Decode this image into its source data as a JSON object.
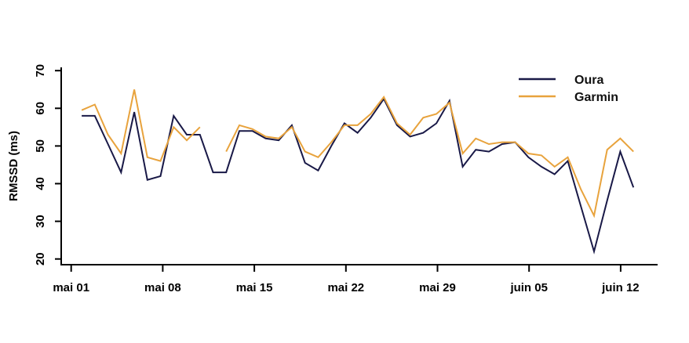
{
  "chart_data": {
    "type": "line",
    "title": "",
    "xlabel": "",
    "ylabel": "RMSSD (ms)",
    "ylim": [
      20,
      70
    ],
    "grid": false,
    "legend_position": "top-right",
    "yticks": [
      "20",
      "30",
      "40",
      "50",
      "60",
      "70"
    ],
    "xticks": [
      "mai 01",
      "mai 08",
      "mai 15",
      "mai 22",
      "mai 29",
      "juin 05",
      "juin 12"
    ],
    "x_dates": [
      "mai 02",
      "mai 03",
      "mai 04",
      "mai 05",
      "mai 06",
      "mai 07",
      "mai 08",
      "mai 09",
      "mai 10",
      "mai 11",
      "mai 12",
      "mai 13",
      "mai 14",
      "mai 15",
      "mai 16",
      "mai 17",
      "mai 18",
      "mai 19",
      "mai 20",
      "mai 21",
      "mai 22",
      "mai 23",
      "mai 24",
      "mai 25",
      "mai 26",
      "mai 27",
      "mai 28",
      "mai 29",
      "mai 30",
      "mai 31",
      "juin 01",
      "juin 02",
      "juin 03",
      "juin 04",
      "juin 05",
      "juin 06",
      "juin 07",
      "juin 08",
      "juin 09",
      "juin 10",
      "juin 11",
      "juin 12",
      "juin 13"
    ],
    "series": [
      {
        "name": "Oura",
        "color": "#191947",
        "values": [
          58,
          58,
          50.5,
          43,
          59,
          41,
          42,
          58,
          53,
          53,
          43,
          43,
          54,
          54,
          52,
          51.5,
          55.5,
          45.5,
          43.5,
          50,
          56,
          53.5,
          57.5,
          62.5,
          55.5,
          52.5,
          53.5,
          56,
          62,
          44.5,
          49,
          48.5,
          50.5,
          51,
          47,
          44.5,
          42.5,
          46,
          34,
          22,
          35.5,
          48.5,
          39
        ]
      },
      {
        "name": "Garmin",
        "color": "#E8A33D",
        "values": [
          59.5,
          61,
          53,
          48,
          65,
          47,
          46,
          55,
          51.5,
          55,
          null,
          48.5,
          55.5,
          54.5,
          52.5,
          52,
          55,
          48.5,
          47,
          51,
          55.5,
          55.5,
          58.5,
          63,
          56,
          53,
          57.5,
          58.5,
          61.5,
          48,
          52,
          50.5,
          51,
          51,
          48,
          47.5,
          44.5,
          47,
          38.5,
          31.5,
          49,
          52,
          48.5
        ]
      }
    ]
  }
}
